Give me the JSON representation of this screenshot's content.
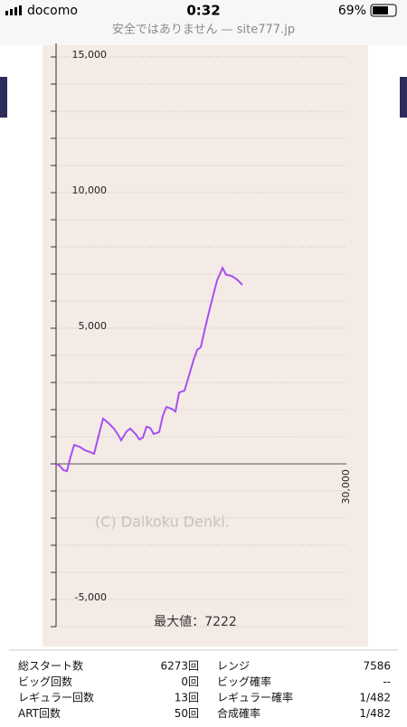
{
  "status_bar": {
    "carrier": "docomo",
    "time": "0:32",
    "battery": "69%",
    "url": "安全ではありません — site777.jp"
  },
  "chart_data": {
    "type": "line",
    "annotations": [
      "(C) Daikoku Denki.",
      "最大値：7222"
    ],
    "xlim": [
      0,
      30000
    ],
    "xticks": [
      {
        "value": 30000,
        "label": "30,000"
      }
    ],
    "ylim": [
      -6000,
      15500
    ],
    "yticks": [
      {
        "value": 15000,
        "label": "15,000"
      },
      {
        "value": 10000,
        "label": "10,000"
      },
      {
        "value": 5000,
        "label": "5,000"
      },
      {
        "value": -5000,
        "label": "-5,000"
      }
    ],
    "yminorticks": [
      -6000,
      -5000,
      -4000,
      -3000,
      -2000,
      -1000,
      0,
      1000,
      2000,
      3000,
      4000,
      5000,
      6000,
      7000,
      8000,
      9000,
      10000,
      11000,
      12000,
      13000,
      14000,
      15000
    ],
    "grid": true,
    "series": [
      {
        "color": "#a64ff0",
        "x": [
          0,
          370,
          750,
          1120,
          1500,
          1870,
          2430,
          2990,
          3550,
          3930,
          4490,
          4860,
          5420,
          5980,
          6360,
          6730,
          7290,
          7660,
          8220,
          8600,
          8970,
          9350,
          9720,
          10090,
          10650,
          11030,
          11400,
          11960,
          12340,
          12710,
          13270,
          13830,
          14210,
          14580,
          14950,
          15510,
          16080,
          16640,
          17200,
          17570,
          18130,
          18690,
          19250
        ],
        "values": [
          0,
          -70,
          -230,
          -270,
          270,
          700,
          630,
          500,
          430,
          370,
          1170,
          1670,
          1500,
          1300,
          1100,
          870,
          1200,
          1300,
          1100,
          900,
          970,
          1370,
          1330,
          1100,
          1170,
          1770,
          2100,
          2030,
          1930,
          2630,
          2700,
          3370,
          3830,
          4200,
          4300,
          5170,
          6000,
          6770,
          7222,
          6970,
          6930,
          6800,
          6600
        ]
      }
    ]
  },
  "table": {
    "rows": [
      [
        "総スタート数",
        "6273回",
        "レンジ",
        "7586"
      ],
      [
        "ビッグ回数",
        "0回",
        "ビッグ確率",
        "--"
      ],
      [
        "レギュラー回数",
        "13回",
        "レギュラー確率",
        "1/482"
      ],
      [
        "ART回数",
        "50回",
        "合成確率",
        "1/482"
      ]
    ]
  }
}
